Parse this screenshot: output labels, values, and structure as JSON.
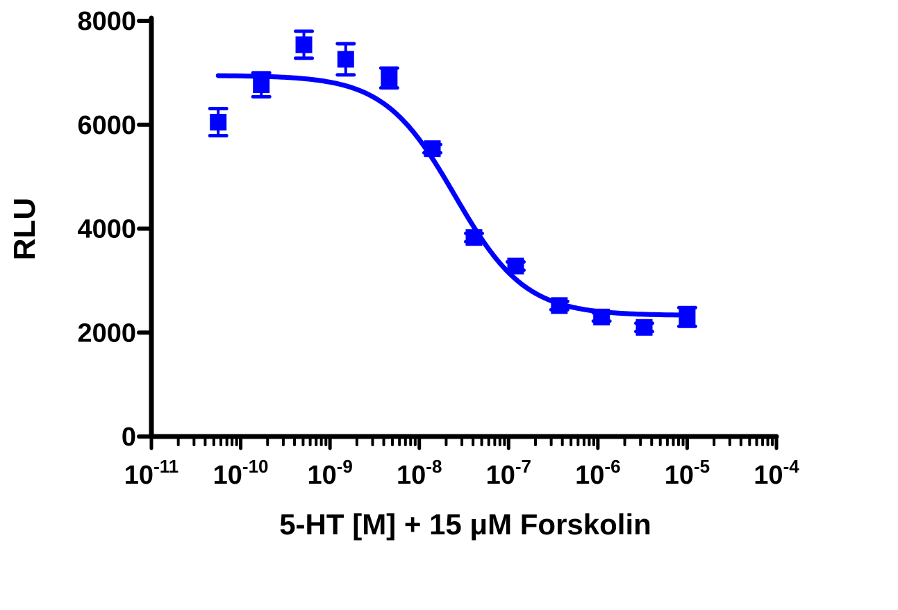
{
  "chart_data": {
    "type": "scatter",
    "title": "",
    "xlabel": "5-HT [M] + 15 μM Forskolin",
    "ylabel": "RLU",
    "xscale": "log",
    "xlim": [
      1e-11,
      0.0001
    ],
    "ylim": [
      0,
      8000
    ],
    "x_ticks": [
      {
        "value": 1e-11,
        "base": "10",
        "exp": "-11"
      },
      {
        "value": 1e-10,
        "base": "10",
        "exp": "-10"
      },
      {
        "value": 1e-09,
        "base": "10",
        "exp": "-9"
      },
      {
        "value": 1e-08,
        "base": "10",
        "exp": "-8"
      },
      {
        "value": 1e-07,
        "base": "10",
        "exp": "-7"
      },
      {
        "value": 1e-06,
        "base": "10",
        "exp": "-6"
      },
      {
        "value": 1e-05,
        "base": "10",
        "exp": "-5"
      },
      {
        "value": 0.0001,
        "base": "10",
        "exp": "-4"
      }
    ],
    "y_ticks": [
      "0",
      "2000",
      "4000",
      "6000",
      "8000"
    ],
    "grid": false,
    "color": "#0000ff",
    "marker": "square",
    "series": [
      {
        "x": [
          5.6e-11,
          1.7e-10,
          5.1e-10,
          1.5e-09,
          4.6e-09,
          1.4e-08,
          4.1e-08,
          1.2e-07,
          3.7e-07,
          1.1e-06,
          3.3e-06,
          1e-05
        ],
        "y": [
          6050,
          6770,
          7540,
          7260,
          6900,
          5540,
          3830,
          3280,
          2520,
          2300,
          2100,
          2300
        ],
        "error": [
          260,
          230,
          260,
          300,
          190,
          80,
          80,
          80,
          80,
          80,
          80,
          180
        ]
      }
    ],
    "fit": {
      "model": "sigmoidal dose-response",
      "top": 6950,
      "bottom": 2330,
      "ic50": 2.5e-08,
      "hill_slope": -1.1,
      "x_range": [
        5.6e-11,
        1e-05
      ]
    }
  }
}
